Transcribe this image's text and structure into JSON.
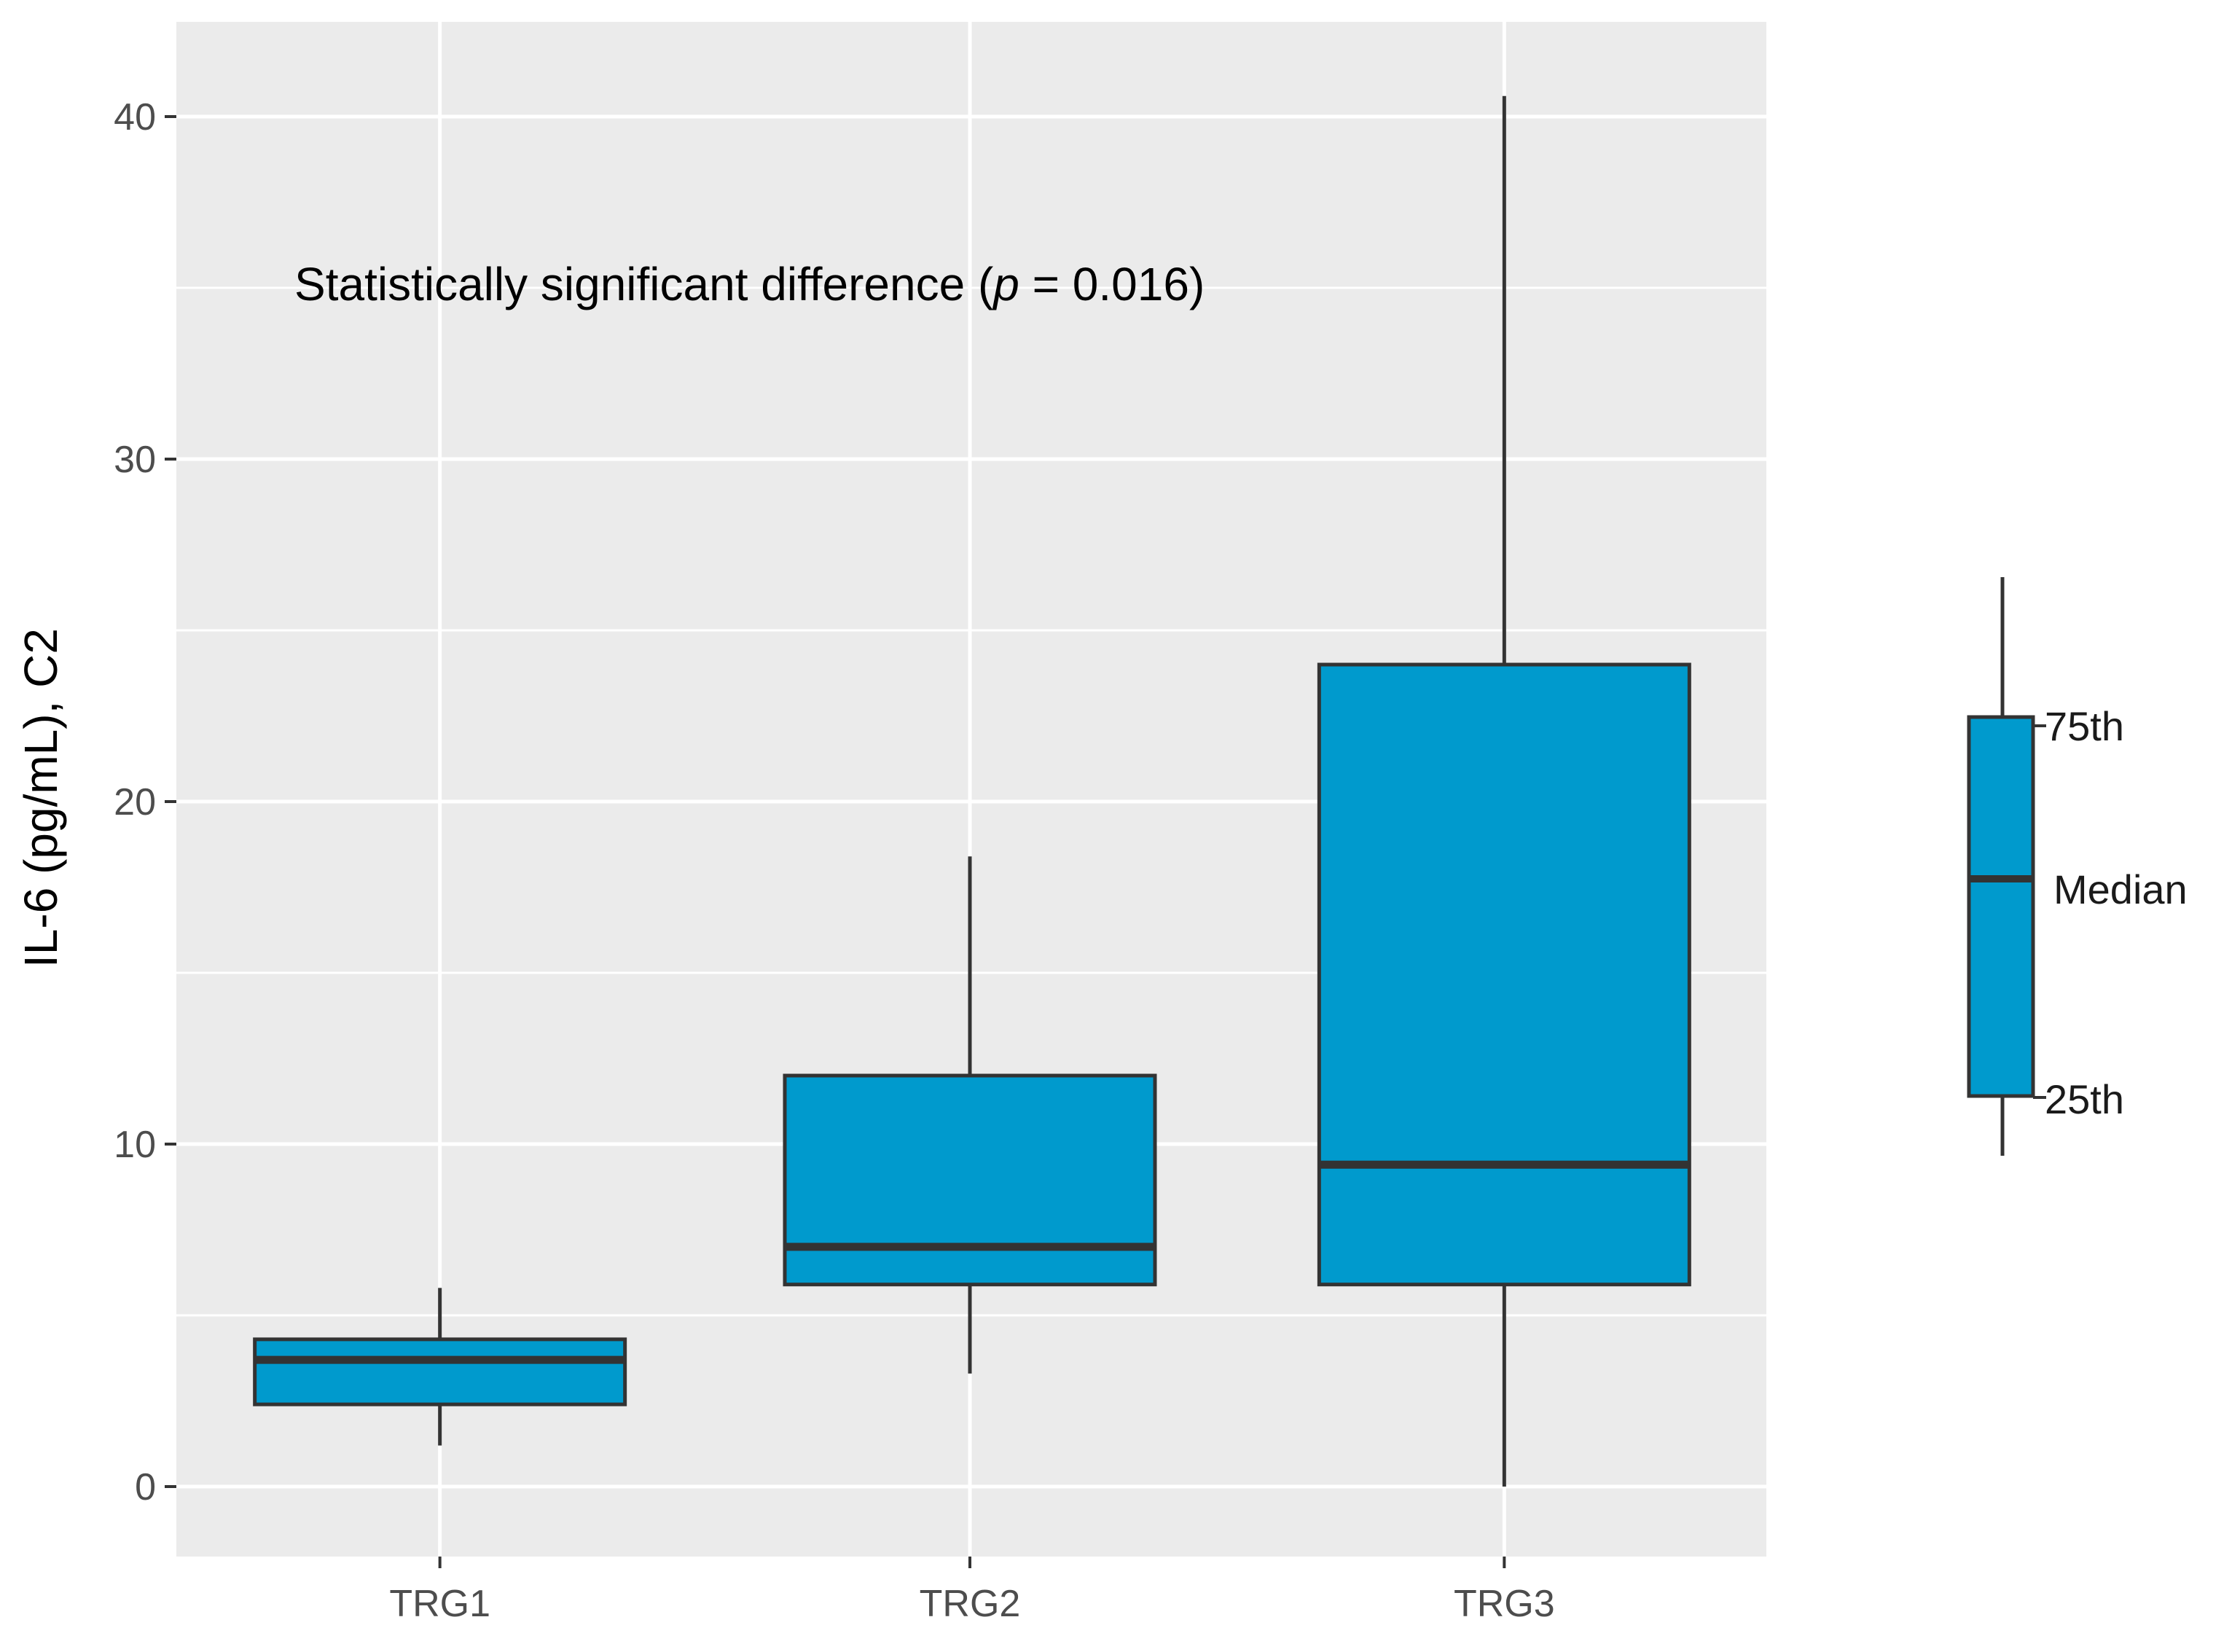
{
  "chart_data": {
    "type": "box",
    "categories": [
      "TRG1",
      "TRG2",
      "TRG3"
    ],
    "boxes": [
      {
        "category": "TRG1",
        "whisker_low": 1.2,
        "q1": 2.4,
        "median": 3.7,
        "q3": 4.3,
        "whisker_high": 5.8
      },
      {
        "category": "TRG2",
        "whisker_low": 3.3,
        "q1": 5.9,
        "median": 7.0,
        "q3": 12.0,
        "whisker_high": 18.4
      },
      {
        "category": "TRG3",
        "whisker_low": 0.0,
        "q1": 5.9,
        "median": 9.4,
        "q3": 24.0,
        "whisker_high": 40.6
      }
    ],
    "ylabel": "IL-6 (pg/mL), C2",
    "xlabel": "",
    "ylim": [
      -2,
      43
    ],
    "yticks": [
      0,
      10,
      20,
      30,
      40
    ],
    "grid": true,
    "annotation": {
      "prefix": "Statistically significant difference (",
      "italic": "p",
      "suffix": " = 0.016)"
    },
    "legend": {
      "placement": "right",
      "labels": {
        "q3": "75th",
        "median": "Median",
        "q1": "25th"
      }
    },
    "colors": {
      "box_fill": "#009ACD",
      "box_stroke": "#333333",
      "panel_bg": "#EBEBEB",
      "grid": "#FFFFFF"
    }
  }
}
